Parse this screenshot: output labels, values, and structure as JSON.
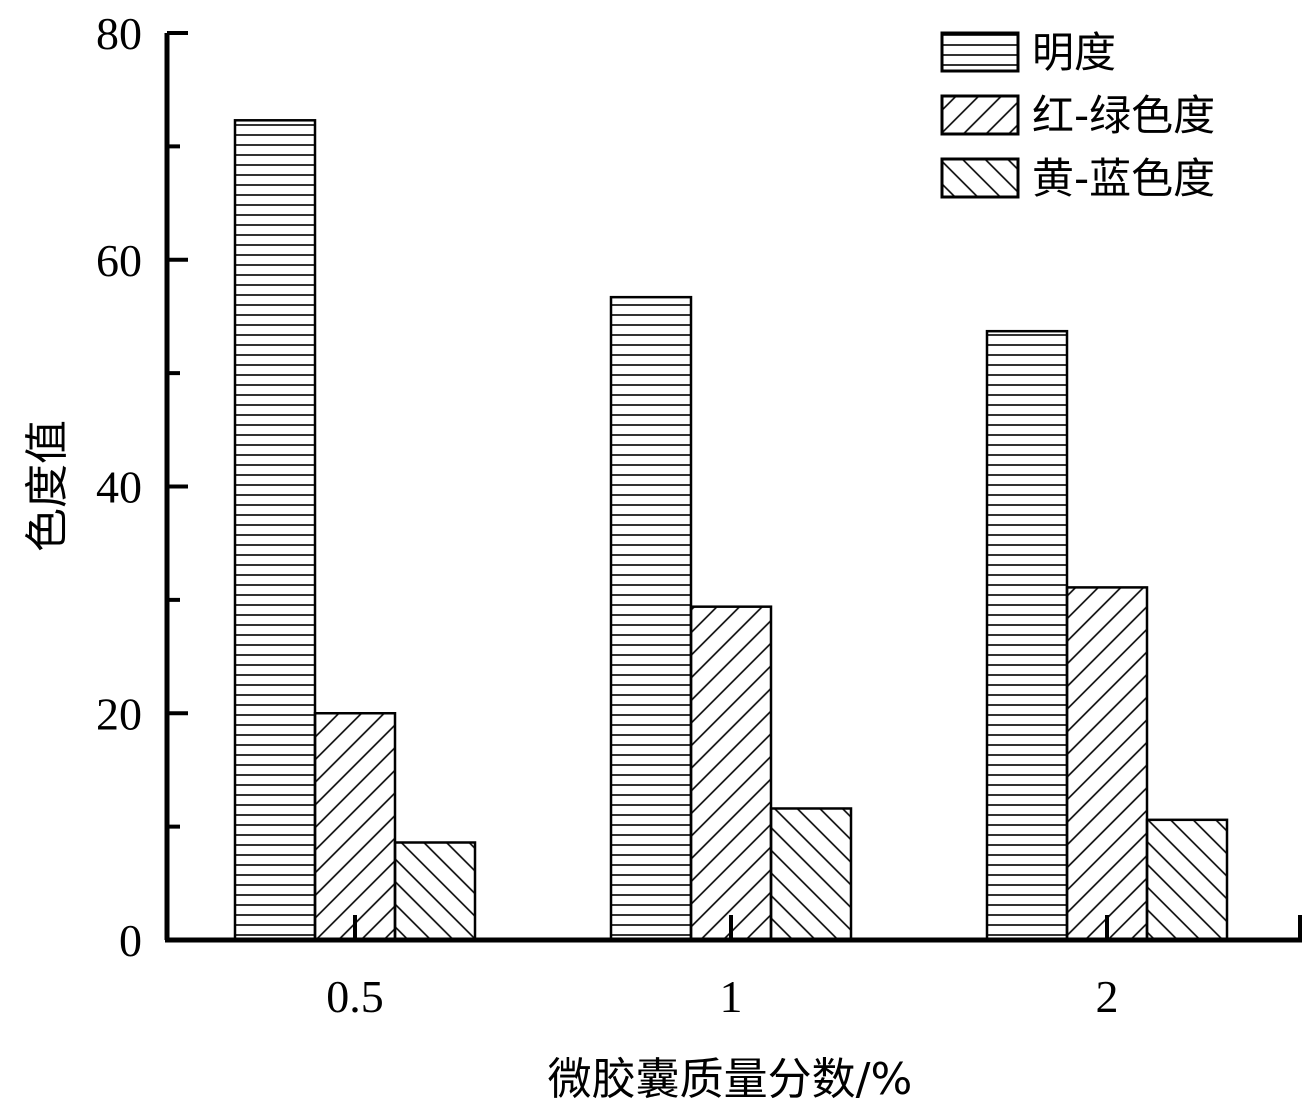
{
  "chart_data": {
    "type": "bar",
    "categories": [
      "0.5",
      "1",
      "2"
    ],
    "series": [
      {
        "name": "明度",
        "values": [
          72.3,
          56.7,
          53.7
        ],
        "pattern": "horizontal-lines"
      },
      {
        "name": "红-绿色度",
        "values": [
          20.0,
          29.4,
          31.1
        ],
        "pattern": "forward-diagonal"
      },
      {
        "name": "黄-蓝色度",
        "values": [
          8.6,
          11.6,
          10.6
        ],
        "pattern": "backward-diagonal"
      }
    ],
    "xlabel": "微胶囊质量分数/%",
    "ylabel": "色度值",
    "ylim": [
      0,
      80
    ],
    "yticks": [
      "0",
      "20",
      "40",
      "60",
      "80"
    ],
    "legend_position": "top-right",
    "grid": false
  }
}
